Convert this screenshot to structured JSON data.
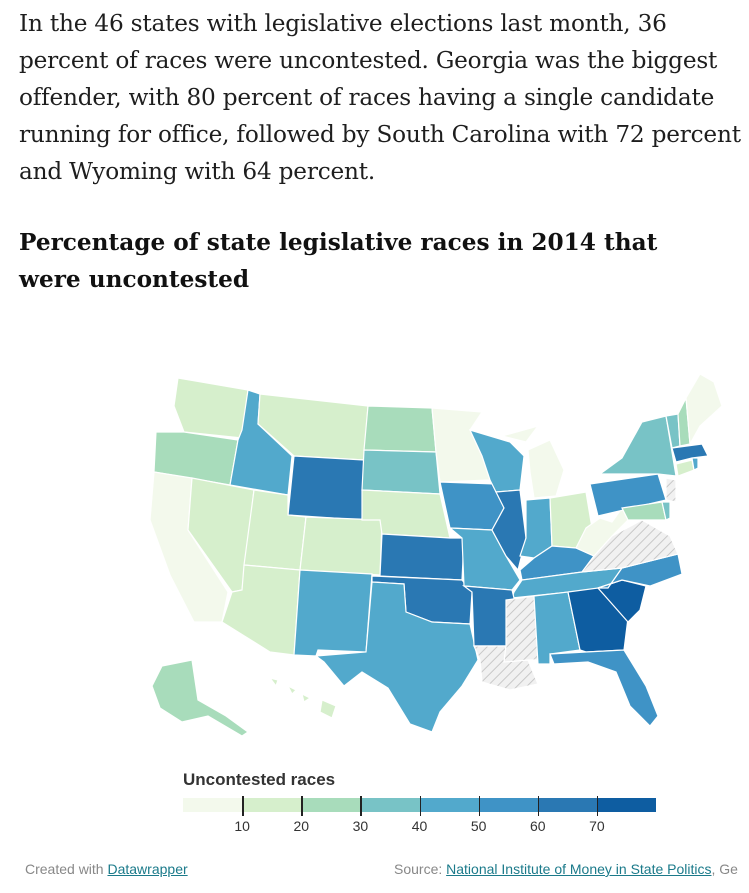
{
  "article": {
    "intro": "In the 46 states with legislative elections last month, 36 percent of races were uncontested. Georgia was the biggest offender, with 80 percent of races having a single candidate running for office, followed by South Carolina with 72 percent and Wyoming with 64 percent.",
    "chart_title": "Percentage of state legislative races in 2014 that were uncontested"
  },
  "legend": {
    "title": "Uncontested races",
    "ticks": [
      "10",
      "20",
      "30",
      "40",
      "50",
      "60",
      "70"
    ],
    "colors": [
      "#f3f9ec",
      "#d6efcc",
      "#a8dcbb",
      "#78c3c6",
      "#52a9cc",
      "#3f93c6",
      "#2a78b3",
      "#0e5da1"
    ]
  },
  "footer": {
    "created_with_prefix": "Created with",
    "created_with_link": "Datawrapper",
    "source_prefix": "Source:",
    "source_link": "National Institute of Money in State Politics",
    "source_suffix": ", Ge"
  },
  "chart_data": {
    "type": "choropleth",
    "title": "Percentage of state legislative races in 2014 that were uncontested",
    "legend_title": "Uncontested races",
    "scale_ticks": [
      10,
      20,
      30,
      40,
      50,
      60,
      70
    ],
    "no_data_pattern": "hatched grey (no election)",
    "values": {
      "Georgia": 80,
      "South Carolina": 72,
      "Wyoming": 64
    },
    "no_data_states": [
      "Louisiana",
      "Mississippi",
      "Virginia",
      "New Jersey"
    ]
  }
}
